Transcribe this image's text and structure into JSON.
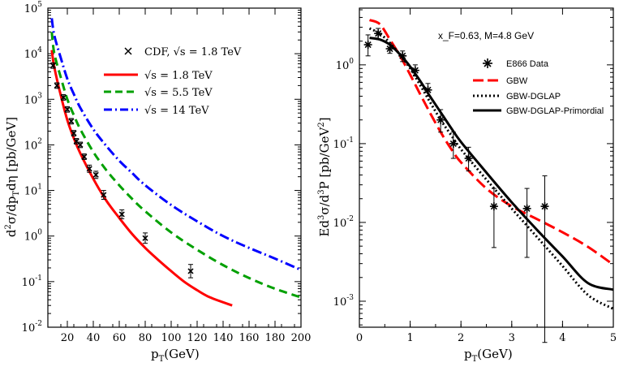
{
  "chart_data": [
    {
      "type": "line",
      "panel": "left",
      "xlabel": "p_T(GeV)",
      "ylabel": "d^2σ/dp_Tdη [pb/GeV]",
      "xlim": [
        5,
        200
      ],
      "ylim_log10": [
        -2,
        5
      ],
      "x_ticks": [
        "20",
        "40",
        "60",
        "80",
        "100",
        "120",
        "140",
        "160",
        "180",
        "200"
      ],
      "y_ticks": [
        {
          "base": "10",
          "exp": "-2"
        },
        {
          "base": "10",
          "exp": "-1"
        },
        {
          "base": "10",
          "exp": "0"
        },
        {
          "base": "10",
          "exp": "1"
        },
        {
          "base": "10",
          "exp": "2"
        },
        {
          "base": "10",
          "exp": "3"
        },
        {
          "base": "10",
          "exp": "4"
        },
        {
          "base": "10",
          "exp": "5"
        }
      ],
      "data_points": {
        "name": "CDF, √s = 1.8 TeV",
        "x": [
          9,
          12,
          17,
          20,
          23,
          25,
          27,
          30,
          33,
          37,
          42,
          48,
          62,
          80,
          115
        ],
        "y": [
          5500,
          2000,
          1100,
          600,
          330,
          180,
          120,
          100,
          55,
          30,
          22,
          8,
          3,
          0.9,
          0.17
        ],
        "yerr_factor": [
          1.15,
          1.15,
          1.15,
          1.15,
          1.15,
          1.15,
          1.15,
          1.15,
          1.15,
          1.2,
          1.2,
          1.25,
          1.25,
          1.3,
          1.4
        ]
      },
      "series": [
        {
          "name": "√s = 1.8 TeV",
          "color": "#ff0000",
          "dash": "solid",
          "x": [
            8,
            10,
            15,
            20,
            25,
            30,
            40,
            50,
            60,
            70,
            80,
            90,
            100,
            110,
            120,
            130,
            147
          ],
          "y": [
            12000,
            5000,
            1200,
            350,
            140,
            65,
            18,
            6,
            2.5,
            1.1,
            0.55,
            0.3,
            0.17,
            0.1,
            0.065,
            0.045,
            0.03
          ]
        },
        {
          "name": "√s = 5.5 TeV",
          "color": "#00a000",
          "dash": "dashed",
          "x": [
            8,
            10,
            15,
            20,
            25,
            30,
            40,
            50,
            60,
            70,
            80,
            100,
            120,
            140,
            160,
            180,
            200
          ],
          "y": [
            30000,
            10000,
            3000,
            1000,
            450,
            220,
            70,
            28,
            13,
            6.5,
            3.5,
            1.2,
            0.5,
            0.23,
            0.12,
            0.07,
            0.045
          ]
        },
        {
          "name": "√s = 14 TeV",
          "color": "#0000ff",
          "dash": "dashdot",
          "x": [
            8,
            10,
            15,
            20,
            25,
            30,
            40,
            50,
            60,
            70,
            80,
            100,
            120,
            140,
            160,
            180,
            200
          ],
          "y": [
            60000,
            25000,
            8000,
            2800,
            1300,
            650,
            220,
            95,
            45,
            24,
            13,
            4.8,
            2.1,
            1.0,
            0.55,
            0.32,
            0.18
          ]
        }
      ],
      "legend": {
        "points_label_prefix": "CDF, ",
        "points_label": "√s = 1.8 TeV",
        "line1": "√s = 1.8 TeV",
        "line2": "√s = 5.5 TeV",
        "line3": "√s = 14 TeV"
      }
    },
    {
      "type": "line",
      "panel": "right",
      "title_annotation": "x_F=0.63, M=4.8 GeV",
      "xlabel": "p_T(GeV)",
      "ylabel": "Ed^3σ/d^3P [pb/GeV^2]",
      "xlim": [
        0,
        5
      ],
      "ylim_log10": [
        -3.33,
        0.72
      ],
      "x_ticks": [
        "0",
        "1",
        "2",
        "3",
        "4",
        "5"
      ],
      "y_ticks": [
        {
          "base": "10",
          "exp": "-3"
        },
        {
          "base": "10",
          "exp": "-2"
        },
        {
          "base": "10",
          "exp": "-1"
        },
        {
          "base": "10",
          "exp": "0"
        }
      ],
      "data_points": {
        "name": "E866 Data",
        "x": [
          0.17,
          0.37,
          0.6,
          0.85,
          1.1,
          1.35,
          1.6,
          1.85,
          2.15,
          2.65,
          3.3,
          3.65
        ],
        "y": [
          1.8,
          2.5,
          1.6,
          1.3,
          0.85,
          0.48,
          0.2,
          0.1,
          0.065,
          0.016,
          0.015,
          0.016
        ],
        "y_lo": [
          1.3,
          2.1,
          1.4,
          1.1,
          0.72,
          0.4,
          0.14,
          0.065,
          0.045,
          0.0048,
          0.0036,
          0.0003
        ],
        "y_hi": [
          2.4,
          2.9,
          1.85,
          1.5,
          1.0,
          0.58,
          0.27,
          0.14,
          0.09,
          0.027,
          0.027,
          0.039
        ]
      },
      "series": [
        {
          "name": "GBW",
          "color": "#ff0000",
          "dash": "longdash",
          "x": [
            0.2,
            0.4,
            0.6,
            0.8,
            1.0,
            1.2,
            1.4,
            1.6,
            1.8,
            2.0,
            2.5,
            3.0,
            3.5,
            4.0,
            4.5,
            5.0
          ],
          "y": [
            3.7,
            3.3,
            2.1,
            1.3,
            0.75,
            0.42,
            0.24,
            0.14,
            0.087,
            0.058,
            0.027,
            0.016,
            0.011,
            0.0075,
            0.0049,
            0.0029
          ]
        },
        {
          "name": "GBW-DGLAP",
          "color": "#000000",
          "dash": "dotted",
          "x": [
            0.2,
            0.4,
            0.6,
            0.8,
            1.0,
            1.2,
            1.4,
            1.6,
            1.8,
            2.0,
            2.5,
            3.0,
            3.5,
            4.0,
            4.5,
            5.0
          ],
          "y": [
            2.9,
            2.5,
            1.9,
            1.35,
            0.9,
            0.55,
            0.33,
            0.2,
            0.13,
            0.085,
            0.035,
            0.015,
            0.0065,
            0.0028,
            0.0012,
            0.0008
          ]
        },
        {
          "name": "GBW-DGLAP-Primordial",
          "color": "#000000",
          "dash": "solid",
          "x": [
            0.2,
            0.4,
            0.6,
            0.8,
            1.0,
            1.2,
            1.4,
            1.6,
            1.8,
            2.0,
            2.5,
            3.0,
            3.5,
            4.0,
            4.5,
            5.0
          ],
          "y": [
            2.2,
            2.1,
            1.8,
            1.35,
            0.95,
            0.62,
            0.39,
            0.25,
            0.16,
            0.105,
            0.043,
            0.018,
            0.008,
            0.0037,
            0.0017,
            0.0014
          ]
        }
      ],
      "legend": {
        "points": "E866 Data",
        "line1": "GBW",
        "line2": "GBW-DGLAP",
        "line3": "GBW-DGLAP-Primordial"
      }
    }
  ]
}
